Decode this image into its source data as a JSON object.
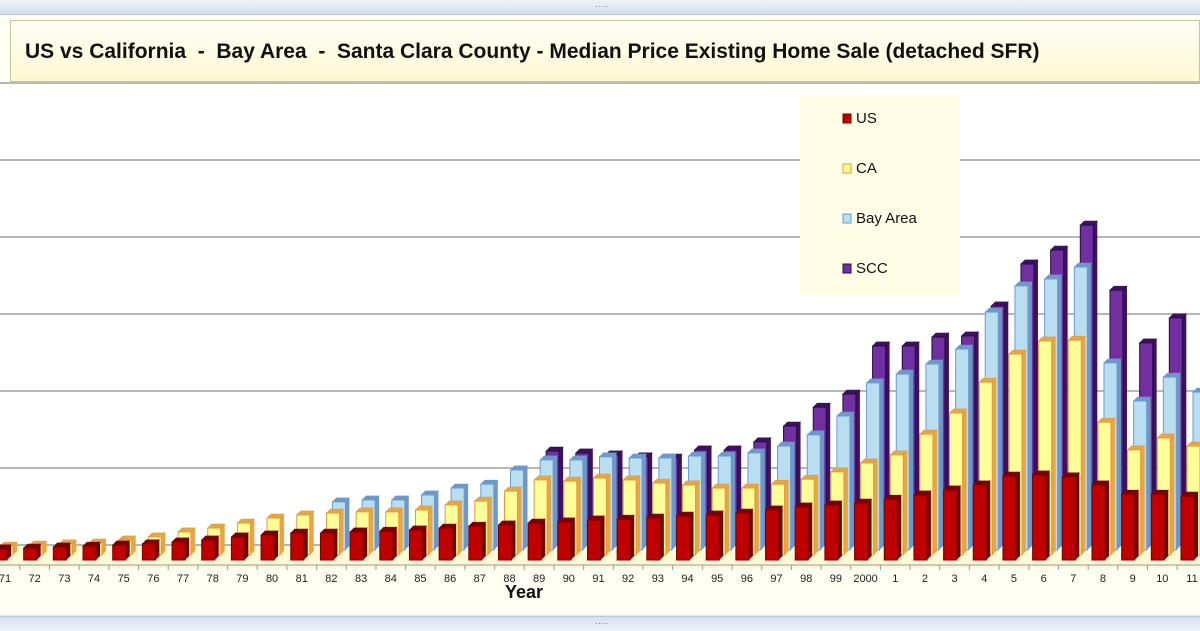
{
  "window": {
    "grip_top": "....",
    "grip_bottom": "...."
  },
  "chart_data": {
    "type": "bar",
    "style": "3d-clustered-column",
    "title": "US vs California  -  Bay Area  -  Santa Clara County - Median Price Existing Home Sale (detached SFR)",
    "xlabel": "Year",
    "ylabel": "",
    "ylim": [
      0,
      1200
    ],
    "grid": true,
    "legend": "top-right",
    "categories": [
      "71",
      "72",
      "73",
      "74",
      "75",
      "76",
      "77",
      "78",
      "79",
      "80",
      "81",
      "82",
      "83",
      "84",
      "85",
      "86",
      "87",
      "88",
      "89",
      "90",
      "91",
      "92",
      "93",
      "94",
      "95",
      "96",
      "97",
      "98",
      "99",
      "2000",
      "1",
      "2",
      "3",
      "4",
      "5",
      "6",
      "7",
      "8",
      "9",
      "10",
      "11"
    ],
    "series": [
      {
        "name": "US",
        "color": "#c00000",
        "side": "#7a0000",
        "values": [
          29,
          31,
          34,
          36,
          39,
          42,
          47,
          52,
          60,
          65,
          70,
          70,
          73,
          75,
          78,
          83,
          88,
          91,
          96,
          99,
          104,
          106,
          109,
          114,
          117,
          122,
          130,
          138,
          143,
          148,
          158,
          169,
          182,
          195,
          218,
          221,
          216,
          195,
          171,
          171,
          166
        ]
      },
      {
        "name": "CA",
        "color": "#ffff99",
        "side": "#e3a64a",
        "border": "#e59b2e",
        "values": [
          23,
          26,
          29,
          31,
          39,
          47,
          60,
          70,
          83,
          96,
          104,
          109,
          112,
          112,
          117,
          130,
          140,
          166,
          195,
          192,
          200,
          195,
          187,
          182,
          174,
          174,
          184,
          197,
          216,
          239,
          260,
          314,
          369,
          449,
          522,
          556,
          558,
          345,
          273,
          304,
          283
        ]
      },
      {
        "name": "Bay Area",
        "color": "#b9def0",
        "side": "#6f98c8",
        "border": "#6b9bd2",
        "values": [
          null,
          null,
          null,
          null,
          null,
          null,
          null,
          null,
          null,
          null,
          null,
          125,
          130,
          130,
          143,
          161,
          171,
          208,
          234,
          234,
          242,
          239,
          239,
          244,
          244,
          252,
          270,
          299,
          348,
          434,
          457,
          483,
          522,
          618,
          686,
          704,
          735,
          486,
          387,
          449,
          410
        ]
      },
      {
        "name": "SCC",
        "color": "#7030a0",
        "side": "#3c1260",
        "border": "#2b0b45",
        "values": [
          null,
          null,
          null,
          null,
          null,
          null,
          null,
          null,
          null,
          null,
          null,
          null,
          null,
          null,
          null,
          null,
          null,
          null,
          244,
          239,
          234,
          229,
          226,
          247,
          247,
          268,
          309,
          358,
          392,
          517,
          517,
          540,
          543,
          621,
          730,
          766,
          831,
          662,
          525,
          590,
          null
        ]
      }
    ]
  }
}
